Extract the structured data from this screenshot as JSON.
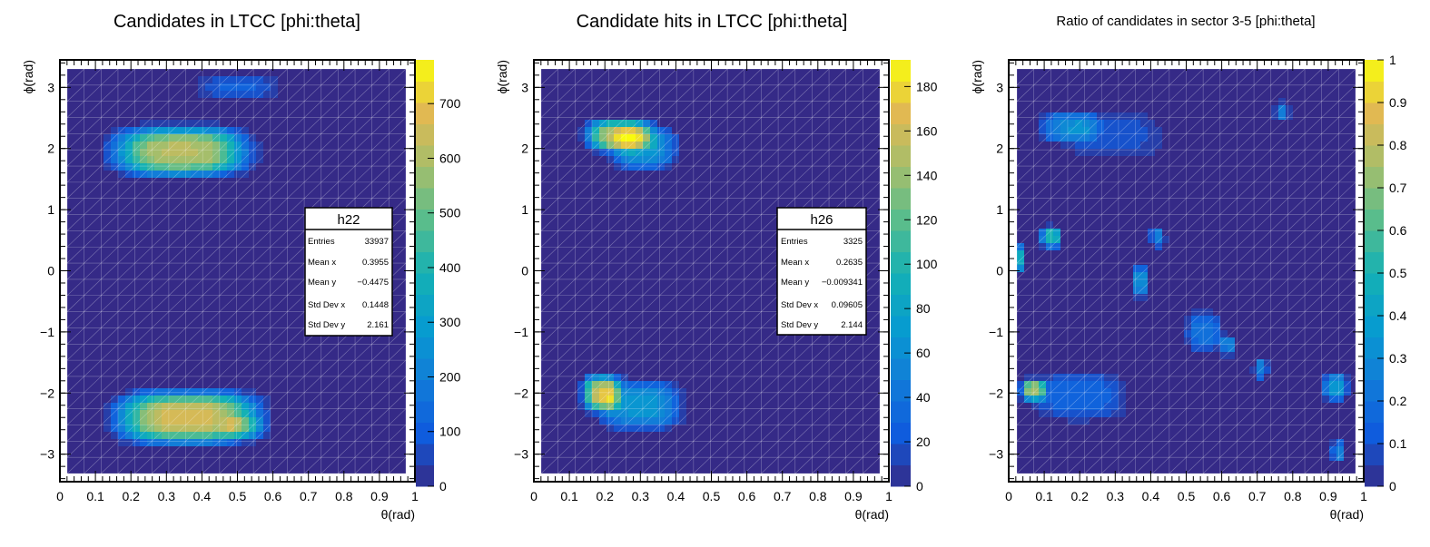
{
  "chart_data": [
    {
      "type": "heatmap",
      "title": "Candidates in LTCC [phi:theta]",
      "xlabel": "θ(rad)",
      "ylabel": "ϕ(rad)",
      "xlim": [
        0,
        1
      ],
      "ylim": [
        -3.45,
        3.45
      ],
      "x_ticks": [
        "0",
        "0.1",
        "0.2",
        "0.3",
        "0.4",
        "0.5",
        "0.6",
        "0.7",
        "0.8",
        "0.9",
        "1"
      ],
      "y_ticks": [
        "−3",
        "−2",
        "−1",
        "0",
        "1",
        "2",
        "3"
      ],
      "colorbar": {
        "min": 0,
        "max": 780,
        "ticks": [
          "0",
          "100",
          "200",
          "300",
          "400",
          "500",
          "600",
          "700"
        ]
      },
      "grid": true,
      "legend": "right",
      "blobs": [
        {
          "x": 0.34,
          "y": 1.95,
          "sx": 0.16,
          "sy": 0.34,
          "value": 630
        },
        {
          "x": 0.5,
          "y": 3.0,
          "sx": 0.1,
          "sy": 0.2,
          "value": 120
        },
        {
          "x": 0.36,
          "y": -2.4,
          "sx": 0.17,
          "sy": 0.36,
          "value": 680
        },
        {
          "x": 0.52,
          "y": -2.55,
          "sx": 0.05,
          "sy": 0.15,
          "value": 180
        }
      ],
      "stats": {
        "name": "h22",
        "rows": [
          {
            "label": "Entries",
            "value": "33937"
          },
          {
            "label": "Mean x",
            "value": "0.3955"
          },
          {
            "label": "Mean y",
            "value": "−0.4475"
          },
          {
            "label": "Std Dev x",
            "value": "0.1448"
          },
          {
            "label": "Std Dev y",
            "value": "2.161"
          }
        ]
      }
    },
    {
      "type": "heatmap",
      "title": "Candidate hits in LTCC [phi:theta]",
      "xlabel": "θ(rad)",
      "ylabel": "ϕ(rad)",
      "xlim": [
        0,
        1
      ],
      "ylim": [
        -3.45,
        3.45
      ],
      "x_ticks": [
        "0",
        "0.1",
        "0.2",
        "0.3",
        "0.4",
        "0.5",
        "0.6",
        "0.7",
        "0.8",
        "0.9",
        "1"
      ],
      "y_ticks": [
        "−3",
        "−2",
        "−1",
        "0",
        "1",
        "2",
        "3"
      ],
      "colorbar": {
        "min": 0,
        "max": 192,
        "ticks": [
          "0",
          "20",
          "40",
          "60",
          "80",
          "100",
          "120",
          "140",
          "160",
          "180"
        ]
      },
      "grid": true,
      "legend": "right",
      "blobs": [
        {
          "x": 0.24,
          "y": 2.22,
          "sx": 0.08,
          "sy": 0.22,
          "value": 150
        },
        {
          "x": 0.31,
          "y": 2.0,
          "sx": 0.08,
          "sy": 0.3,
          "value": 70
        },
        {
          "x": 0.19,
          "y": -2.0,
          "sx": 0.045,
          "sy": 0.25,
          "value": 150
        },
        {
          "x": 0.3,
          "y": -2.2,
          "sx": 0.1,
          "sy": 0.35,
          "value": 70
        }
      ],
      "stats": {
        "name": "h26",
        "rows": [
          {
            "label": "Entries",
            "value": "3325"
          },
          {
            "label": "Mean x",
            "value": "0.2635"
          },
          {
            "label": "Mean y",
            "value": "−0.009341"
          },
          {
            "label": "Std Dev x",
            "value": "0.09605"
          },
          {
            "label": "Std Dev y",
            "value": "2.144"
          }
        ]
      }
    },
    {
      "type": "heatmap",
      "title": "Ratio of candidates in sector 3-5 [phi:theta]",
      "xlabel": "θ(rad)",
      "ylabel": "ϕ(rad)",
      "xlim": [
        0,
        1
      ],
      "ylim": [
        -3.45,
        3.45
      ],
      "x_ticks": [
        "0",
        "0.1",
        "0.2",
        "0.3",
        "0.4",
        "0.5",
        "0.6",
        "0.7",
        "0.8",
        "0.9",
        "1"
      ],
      "y_ticks": [
        "−3",
        "−2",
        "−1",
        "0",
        "1",
        "2",
        "3"
      ],
      "colorbar": {
        "min": 0,
        "max": 1,
        "ticks": [
          "0",
          "0.1",
          "0.2",
          "0.3",
          "0.4",
          "0.5",
          "0.6",
          "0.7",
          "0.8",
          "0.9",
          "1"
        ]
      },
      "grid": true,
      "legend": "right",
      "blobs": [
        {
          "x": 0.17,
          "y": 2.35,
          "sx": 0.07,
          "sy": 0.22,
          "value": 0.3
        },
        {
          "x": 0.3,
          "y": 2.2,
          "sx": 0.12,
          "sy": 0.35,
          "value": 0.12
        },
        {
          "x": 0.12,
          "y": 0.55,
          "sx": 0.025,
          "sy": 0.15,
          "value": 0.55
        },
        {
          "x": 0.02,
          "y": 0.2,
          "sx": 0.02,
          "sy": 0.2,
          "value": 0.55
        },
        {
          "x": 0.37,
          "y": -0.18,
          "sx": 0.02,
          "sy": 0.22,
          "value": 0.35
        },
        {
          "x": 0.42,
          "y": 0.55,
          "sx": 0.018,
          "sy": 0.15,
          "value": 0.28
        },
        {
          "x": 0.55,
          "y": -1.0,
          "sx": 0.045,
          "sy": 0.3,
          "value": 0.22
        },
        {
          "x": 0.62,
          "y": -1.22,
          "sx": 0.018,
          "sy": 0.15,
          "value": 0.3
        },
        {
          "x": 0.71,
          "y": -1.6,
          "sx": 0.018,
          "sy": 0.15,
          "value": 0.3
        },
        {
          "x": 0.77,
          "y": 2.6,
          "sx": 0.018,
          "sy": 0.15,
          "value": 0.28
        },
        {
          "x": 0.07,
          "y": -1.95,
          "sx": 0.03,
          "sy": 0.15,
          "value": 0.72
        },
        {
          "x": 0.2,
          "y": -2.05,
          "sx": 0.12,
          "sy": 0.35,
          "value": 0.18
        },
        {
          "x": 0.92,
          "y": -1.9,
          "sx": 0.03,
          "sy": 0.2,
          "value": 0.38
        },
        {
          "x": 0.93,
          "y": -2.95,
          "sx": 0.018,
          "sy": 0.15,
          "value": 0.3
        }
      ]
    }
  ]
}
